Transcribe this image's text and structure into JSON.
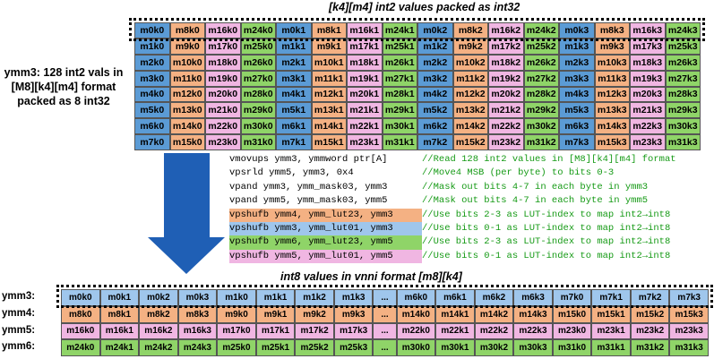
{
  "top_title": "[k4][m4] int2 values packed as int32",
  "side_label": [
    "ymm3: 128 int2 vals in",
    "[M8][k4][m4] format",
    "packed as 8 int32"
  ],
  "colors": {
    "k0": "#5b9bd5",
    "k1": "#f4b183",
    "k2": "#f0b6e2",
    "k3": "#8fd468",
    "arrow": "#1f5fb5",
    "comment": "#159a15"
  },
  "top_rows": [
    [
      "m0k0",
      "m8k0",
      "m16k0",
      "m24k0",
      "m0k1",
      "m8k1",
      "m16k1",
      "m24k1",
      "m0k2",
      "m8k2",
      "m16k2",
      "m24k2",
      "m0k3",
      "m8k3",
      "m16k3",
      "m24k3"
    ],
    [
      "m1k0",
      "m9k0",
      "m17k0",
      "m25k0",
      "m1k1",
      "m9k1",
      "m17k1",
      "m25k1",
      "m1k2",
      "m9k2",
      "m17k2",
      "m25k2",
      "m1k3",
      "m9k3",
      "m17k3",
      "m25k3"
    ],
    [
      "m2k0",
      "m10k0",
      "m18k0",
      "m26k0",
      "m2k1",
      "m10k1",
      "m18k1",
      "m26k1",
      "m2k2",
      "m10k2",
      "m18k2",
      "m26k2",
      "m2k3",
      "m10k3",
      "m18k3",
      "m26k3"
    ],
    [
      "m3k0",
      "m11k0",
      "m19k0",
      "m27k0",
      "m3k1",
      "m11k1",
      "m19k1",
      "m27k1",
      "m3k2",
      "m11k2",
      "m19k2",
      "m27k2",
      "m3k3",
      "m11k3",
      "m19k3",
      "m27k3"
    ],
    [
      "m4k0",
      "m12k0",
      "m20k0",
      "m28k0",
      "m4k1",
      "m12k1",
      "m20k1",
      "m28k1",
      "m4k2",
      "m12k2",
      "m20k2",
      "m28k2",
      "m4k3",
      "m12k3",
      "m20k3",
      "m28k3"
    ],
    [
      "m5k0",
      "m13k0",
      "m21k0",
      "m29k0",
      "m5k1",
      "m13k1",
      "m21k1",
      "m29k1",
      "m5k2",
      "m13k2",
      "m21k2",
      "m29k2",
      "m5k3",
      "m13k3",
      "m21k3",
      "m29k3"
    ],
    [
      "m6k0",
      "m14k0",
      "m22k0",
      "m30k0",
      "m6k1",
      "m14k1",
      "m22k1",
      "m30k1",
      "m6k2",
      "m14k2",
      "m22k2",
      "m30k2",
      "m6k3",
      "m14k3",
      "m22k3",
      "m30k3"
    ],
    [
      "m7k0",
      "m15k0",
      "m23k0",
      "m31k0",
      "m7k1",
      "m15k1",
      "m23k1",
      "m31k1",
      "m7k2",
      "m15k2",
      "m23k2",
      "m31k2",
      "m7k3",
      "m15k3",
      "m23k3",
      "m31k3"
    ]
  ],
  "code": [
    {
      "ins": "vmovups ymm3, ymmword ptr[A]",
      "cmt": "//Read 128 int2 values in [M8][k4][m4] format",
      "hl": ""
    },
    {
      "ins": "vpsrld ymm5, ymm3, 0x4",
      "cmt": "//Move4 MSB (per byte) to bits 0-3",
      "hl": ""
    },
    {
      "ins": "vpand ymm3, ymm_mask03, ymm3",
      "cmt": "//Mask out bits 4-7 in each byte in ymm3",
      "hl": ""
    },
    {
      "ins": "vpand ymm5, ymm_mask03, ymm5",
      "cmt": "//Mask out bits 4-7 in each byte in ymm5",
      "hl": ""
    },
    {
      "ins": "vpshufb ymm4, ymm_lut23, ymm3",
      "cmt": "//Use bits 2-3 as LUT-index to map int2→int8",
      "hl": "#f4b183"
    },
    {
      "ins": "vpshufb ymm3, ymm_lut01, ymm3",
      "cmt": "//Use bits 0-1 as LUT-index to map int2→int8",
      "hl": "#9fc6ec"
    },
    {
      "ins": "vpshufb ymm6, ymm_lut23, ymm5",
      "cmt": "//Use bits 2-3 as LUT-index to map int2→int8",
      "hl": "#8fd468"
    },
    {
      "ins": "vpshufb ymm5, ymm_lut01, ymm5",
      "cmt": "//Use bits 0-1 as LUT-index to map int2→int8",
      "hl": "#f0b6e2"
    }
  ],
  "bottom_title": "int8 values in vnni format [m8][k4]",
  "bottom_rows": [
    {
      "label": "ymm3:",
      "color": "#9fc6ec",
      "cells": [
        "m0k0",
        "m0k1",
        "m0k2",
        "m0k3",
        "m1k0",
        "m1k1",
        "m1k2",
        "m1k3",
        "...",
        "m6k0",
        "m6k1",
        "m6k2",
        "m6k3",
        "m7k0",
        "m7k1",
        "m7k2",
        "m7k3"
      ]
    },
    {
      "label": "ymm4:",
      "color": "#f4b183",
      "cells": [
        "m8k0",
        "m8k1",
        "m8k2",
        "m8k3",
        "m9k0",
        "m9k1",
        "m9k2",
        "m9k3",
        "...",
        "m14k0",
        "m14k1",
        "m14k2",
        "m14k3",
        "m15k0",
        "m15k1",
        "m15k2",
        "m15k3"
      ]
    },
    {
      "label": "ymm5:",
      "color": "#f0b6e2",
      "cells": [
        "m16k0",
        "m16k1",
        "m16k2",
        "m16k3",
        "m17k0",
        "m17k1",
        "m17k2",
        "m17k3",
        "...",
        "m22k0",
        "m22k1",
        "m22k2",
        "m22k3",
        "m23k0",
        "m23k1",
        "m23k2",
        "m23k3"
      ]
    },
    {
      "label": "ymm6:",
      "color": "#8fd468",
      "cells": [
        "m24k0",
        "m24k1",
        "m24k2",
        "m24k3",
        "m25k0",
        "m25k1",
        "m25k2",
        "m25k3",
        "...",
        "m30k0",
        "m30k1",
        "m30k2",
        "m30k3",
        "m31k0",
        "m31k1",
        "m31k2",
        "m31k3"
      ]
    }
  ]
}
